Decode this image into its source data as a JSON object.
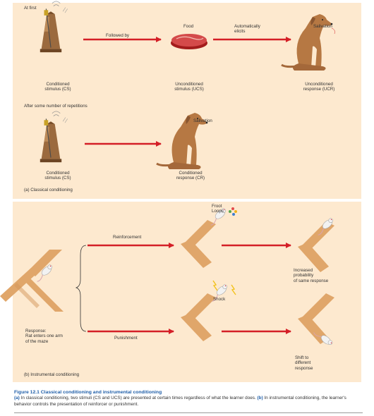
{
  "panel_a": {
    "at_first": "At first",
    "followed_by": "Followed by",
    "food": "Food",
    "automatically_elicits": "Automatically\nelicits",
    "salivation_top": "Salivation",
    "cs_top": "Conditioned\nstimulus (CS)",
    "ucs": "Unconditioned\nstimulus (UCS)",
    "ucr": "Unconditioned\nresponse (UCR)",
    "after_repetitions": "After some number of repetitions",
    "salivation_bottom": "Salivation",
    "cs_bottom": "Conditioned\nstimulus (CS)",
    "cr": "Conditioned\nresponse (CR)",
    "subtitle": "(a) Classical conditioning"
  },
  "panel_b": {
    "froot_loops": "Froot\nLoops",
    "reinforcement": "Reinforcement",
    "increased": "Increased\nprobability\nof same response",
    "shock": "Shock",
    "response": "Response:\nRat enters one arm\nof the maze",
    "punishment": "Punishment",
    "shift": "Shift to\ndifferent\nresponse",
    "subtitle": "(b) Instrumental conditioning"
  },
  "caption": {
    "title": "Figure 12.1  Classical conditioning and instrumental conditioning",
    "text_a_label": "(a)",
    "text_a": " In classical conditioning, two stimuli (CS and UCS) are presented at certain times regardless of what the learner does. ",
    "text_b_label": "(b)",
    "text_b": " In instrumental conditioning, the learner's behavior controls the presentation of reinforcer or punishment."
  },
  "colors": {
    "panel_bg": "#fde9cf",
    "arrow": "#d41f27",
    "maze": "#e0a66a",
    "dog": "#b67843",
    "caption_title": "#1f5ea8"
  }
}
